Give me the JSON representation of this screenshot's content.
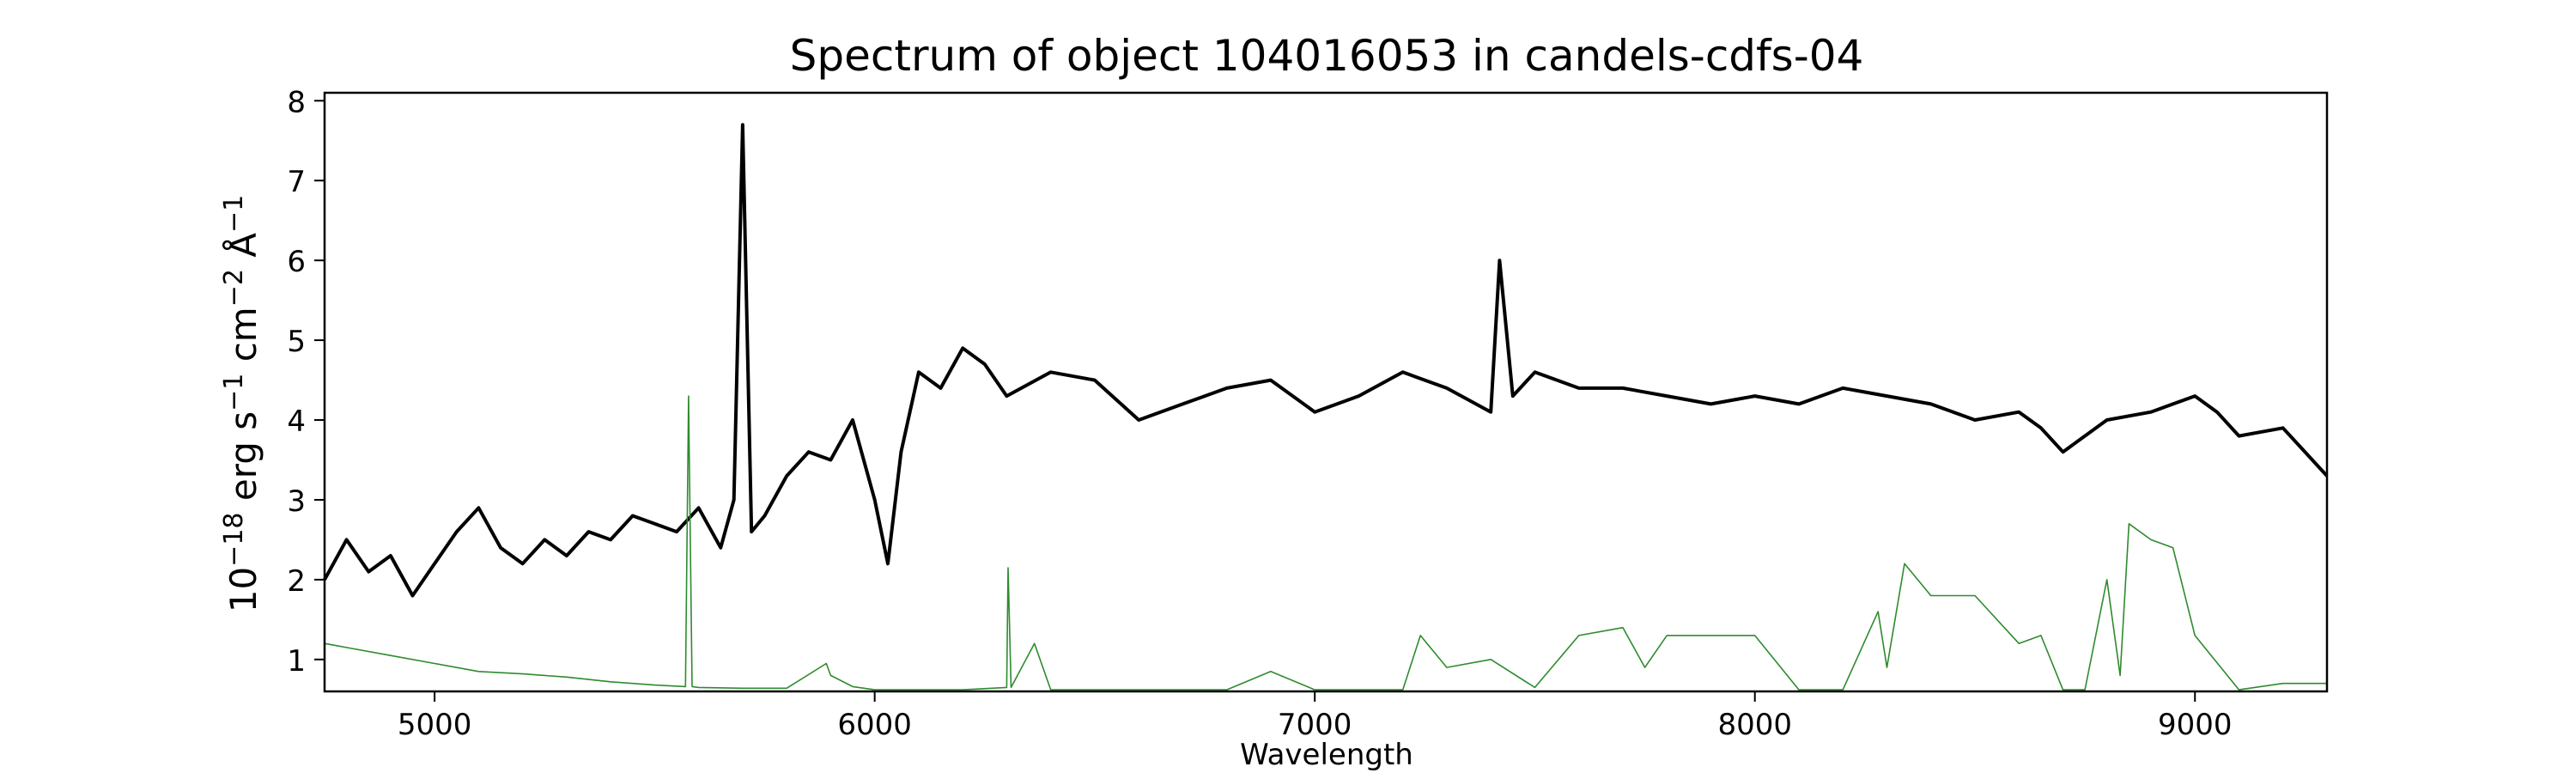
{
  "chart_data": {
    "type": "line",
    "title": "Spectrum of object 104016053 in candels-cdfs-04",
    "xlabel": "Wavelength",
    "ylabel_parts": [
      "10",
      "−18",
      " erg s",
      "−1",
      " cm",
      "−2",
      " Å",
      "−1"
    ],
    "xlim": [
      4750,
      9300
    ],
    "ylim": [
      0.6,
      8.1
    ],
    "xticks": [
      5000,
      6000,
      7000,
      8000,
      9000
    ],
    "yticks": [
      1,
      2,
      3,
      4,
      5,
      6,
      7,
      8
    ],
    "grid": false,
    "series": [
      {
        "color": "#000000",
        "x": [
          4750,
          4800,
          4850,
          4900,
          4950,
          5000,
          5050,
          5100,
          5150,
          5200,
          5250,
          5300,
          5350,
          5400,
          5450,
          5500,
          5550,
          5600,
          5650,
          5680,
          5700,
          5720,
          5750,
          5800,
          5850,
          5900,
          5950,
          6000,
          6030,
          6060,
          6100,
          6150,
          6200,
          6250,
          6300,
          6400,
          6500,
          6600,
          6700,
          6800,
          6900,
          7000,
          7100,
          7200,
          7300,
          7400,
          7420,
          7450,
          7500,
          7600,
          7700,
          7800,
          7900,
          8000,
          8100,
          8200,
          8300,
          8400,
          8500,
          8600,
          8650,
          8700,
          8800,
          8900,
          8950,
          9000,
          9050,
          9100,
          9200,
          9300
        ],
        "y": [
          2.0,
          2.5,
          2.1,
          2.3,
          1.8,
          2.2,
          2.6,
          2.9,
          2.4,
          2.2,
          2.5,
          2.3,
          2.6,
          2.5,
          2.8,
          2.7,
          2.6,
          2.9,
          2.4,
          3.0,
          7.7,
          2.6,
          2.8,
          3.3,
          3.6,
          3.5,
          4.0,
          3.0,
          2.2,
          3.6,
          4.6,
          4.4,
          4.9,
          4.7,
          4.3,
          4.6,
          4.5,
          4.0,
          4.2,
          4.4,
          4.5,
          4.1,
          4.3,
          4.6,
          4.4,
          4.1,
          6.0,
          4.3,
          4.6,
          4.4,
          4.4,
          4.3,
          4.2,
          4.3,
          4.2,
          4.4,
          4.3,
          4.2,
          4.0,
          4.1,
          3.9,
          3.6,
          4.0,
          4.1,
          4.2,
          4.3,
          4.1,
          3.8,
          3.9,
          3.3
        ]
      },
      {
        "color": "#2e8b2e",
        "x": [
          4750,
          4800,
          4900,
          5000,
          5100,
          5200,
          5300,
          5400,
          5500,
          5570,
          5577,
          5585,
          5600,
          5700,
          5800,
          5890,
          5900,
          5950,
          6000,
          6100,
          6200,
          6300,
          6303,
          6310,
          6363,
          6400,
          6500,
          6600,
          6800,
          6900,
          7000,
          7200,
          7240,
          7300,
          7400,
          7500,
          7600,
          7700,
          7750,
          7800,
          7900,
          8000,
          8100,
          8200,
          8280,
          8300,
          8340,
          8400,
          8500,
          8600,
          8650,
          8700,
          8750,
          8800,
          8830,
          8850,
          8900,
          8950,
          9000,
          9100,
          9200,
          9300
        ],
        "y": [
          1.2,
          1.15,
          1.05,
          0.95,
          0.85,
          0.82,
          0.78,
          0.72,
          0.68,
          0.66,
          4.3,
          0.66,
          0.65,
          0.64,
          0.64,
          0.95,
          0.8,
          0.66,
          0.62,
          0.62,
          0.62,
          0.65,
          2.15,
          0.65,
          1.2,
          0.62,
          0.62,
          0.62,
          0.62,
          0.85,
          0.62,
          0.62,
          1.3,
          0.9,
          1.0,
          0.65,
          1.3,
          1.4,
          0.9,
          1.3,
          1.3,
          1.3,
          0.62,
          0.62,
          1.6,
          0.9,
          2.2,
          1.8,
          1.8,
          1.2,
          1.3,
          0.62,
          0.62,
          2.0,
          0.8,
          2.7,
          2.5,
          2.4,
          1.3,
          0.62,
          0.7,
          0.7
        ]
      }
    ]
  }
}
